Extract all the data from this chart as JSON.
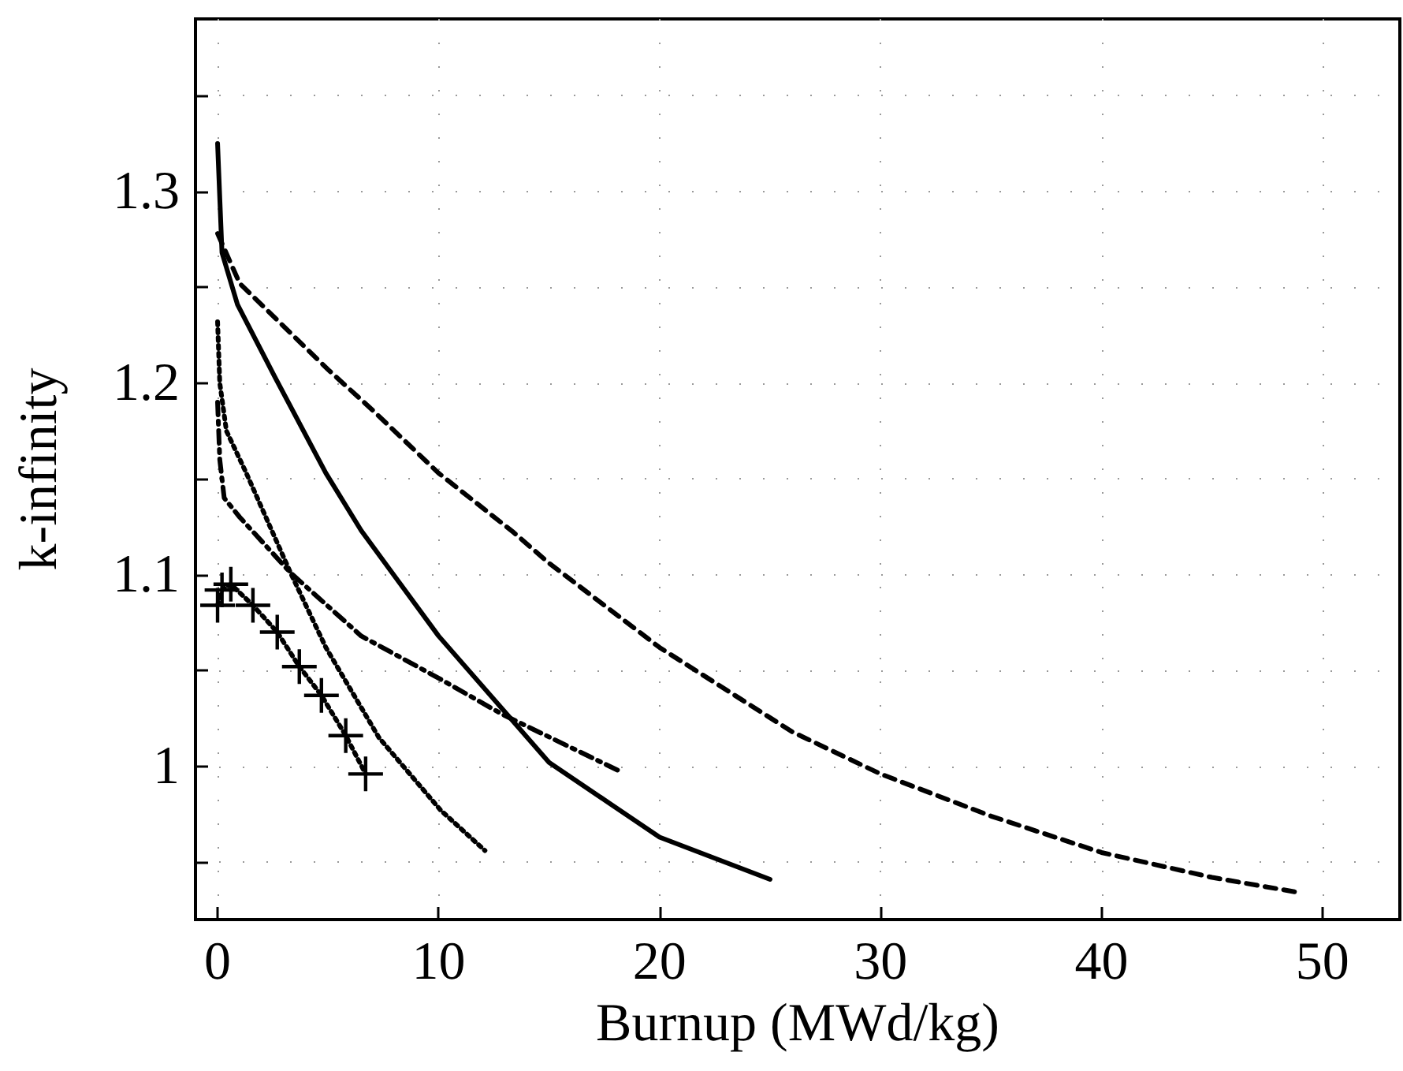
{
  "chart_data": {
    "type": "line",
    "xlabel": "Burnup (MWd/kg)",
    "ylabel": "k-infinity",
    "xlim": [
      -1,
      53.5
    ],
    "xticks": [
      0,
      10,
      20,
      30,
      40,
      50
    ],
    "ylim": [
      0.92,
      1.39
    ],
    "yticks": [
      {
        "value": 0.95,
        "label": null
      },
      1,
      {
        "value": 1.05,
        "label": null
      },
      1.1,
      {
        "value": 1.15,
        "label": null
      },
      1.2,
      {
        "value": 1.25,
        "label": null
      },
      1.3,
      {
        "value": 1.35,
        "label": null
      }
    ],
    "grid": true,
    "marker": "none",
    "series": [
      {
        "color": "#000000",
        "line_style": "dashed",
        "x": [
          0,
          1,
          5,
          7,
          10,
          13.4,
          15,
          20,
          26,
          30,
          35,
          40,
          45,
          49
        ],
        "values": [
          1.278,
          1.252,
          1.207,
          1.186,
          1.153,
          1.122,
          1.106,
          1.062,
          1.018,
          0.996,
          0.974,
          0.955,
          0.942,
          0.934
        ]
      },
      {
        "color": "#000000",
        "line_style": "solid",
        "x": [
          0,
          0.2,
          0.9,
          2.6,
          4.9,
          6.5,
          10,
          15,
          20,
          25
        ],
        "values": [
          1.325,
          1.268,
          1.241,
          1.203,
          1.153,
          1.123,
          1.068,
          1.002,
          0.963,
          0.941
        ]
      },
      {
        "color": "#000000",
        "line_style": "dashdot",
        "x": [
          0,
          0.1,
          0.3,
          1,
          3.3,
          6.5,
          10,
          12.9,
          18.1
        ],
        "values": [
          1.19,
          1.16,
          1.14,
          1.13,
          1.101,
          1.068,
          1.046,
          1.027,
          0.998
        ]
      },
      {
        "color": "#000000",
        "line_style": "dotted",
        "x": [
          0,
          0.1,
          0.4,
          1.3,
          3.3,
          4.9,
          7.3,
          10.1,
          12.1
        ],
        "values": [
          1.232,
          1.2,
          1.175,
          1.153,
          1.101,
          1.062,
          1.015,
          0.977,
          0.956
        ]
      },
      {
        "color": "#000000",
        "line_style": "dotted",
        "marker": "cross",
        "x": [
          0,
          0.2,
          0.6,
          1.6,
          2.7,
          3.7,
          4.7,
          5.8,
          6.7
        ],
        "values": [
          1.084,
          1.092,
          1.095,
          1.084,
          1.07,
          1.052,
          1.037,
          1.016,
          0.996
        ]
      }
    ]
  }
}
